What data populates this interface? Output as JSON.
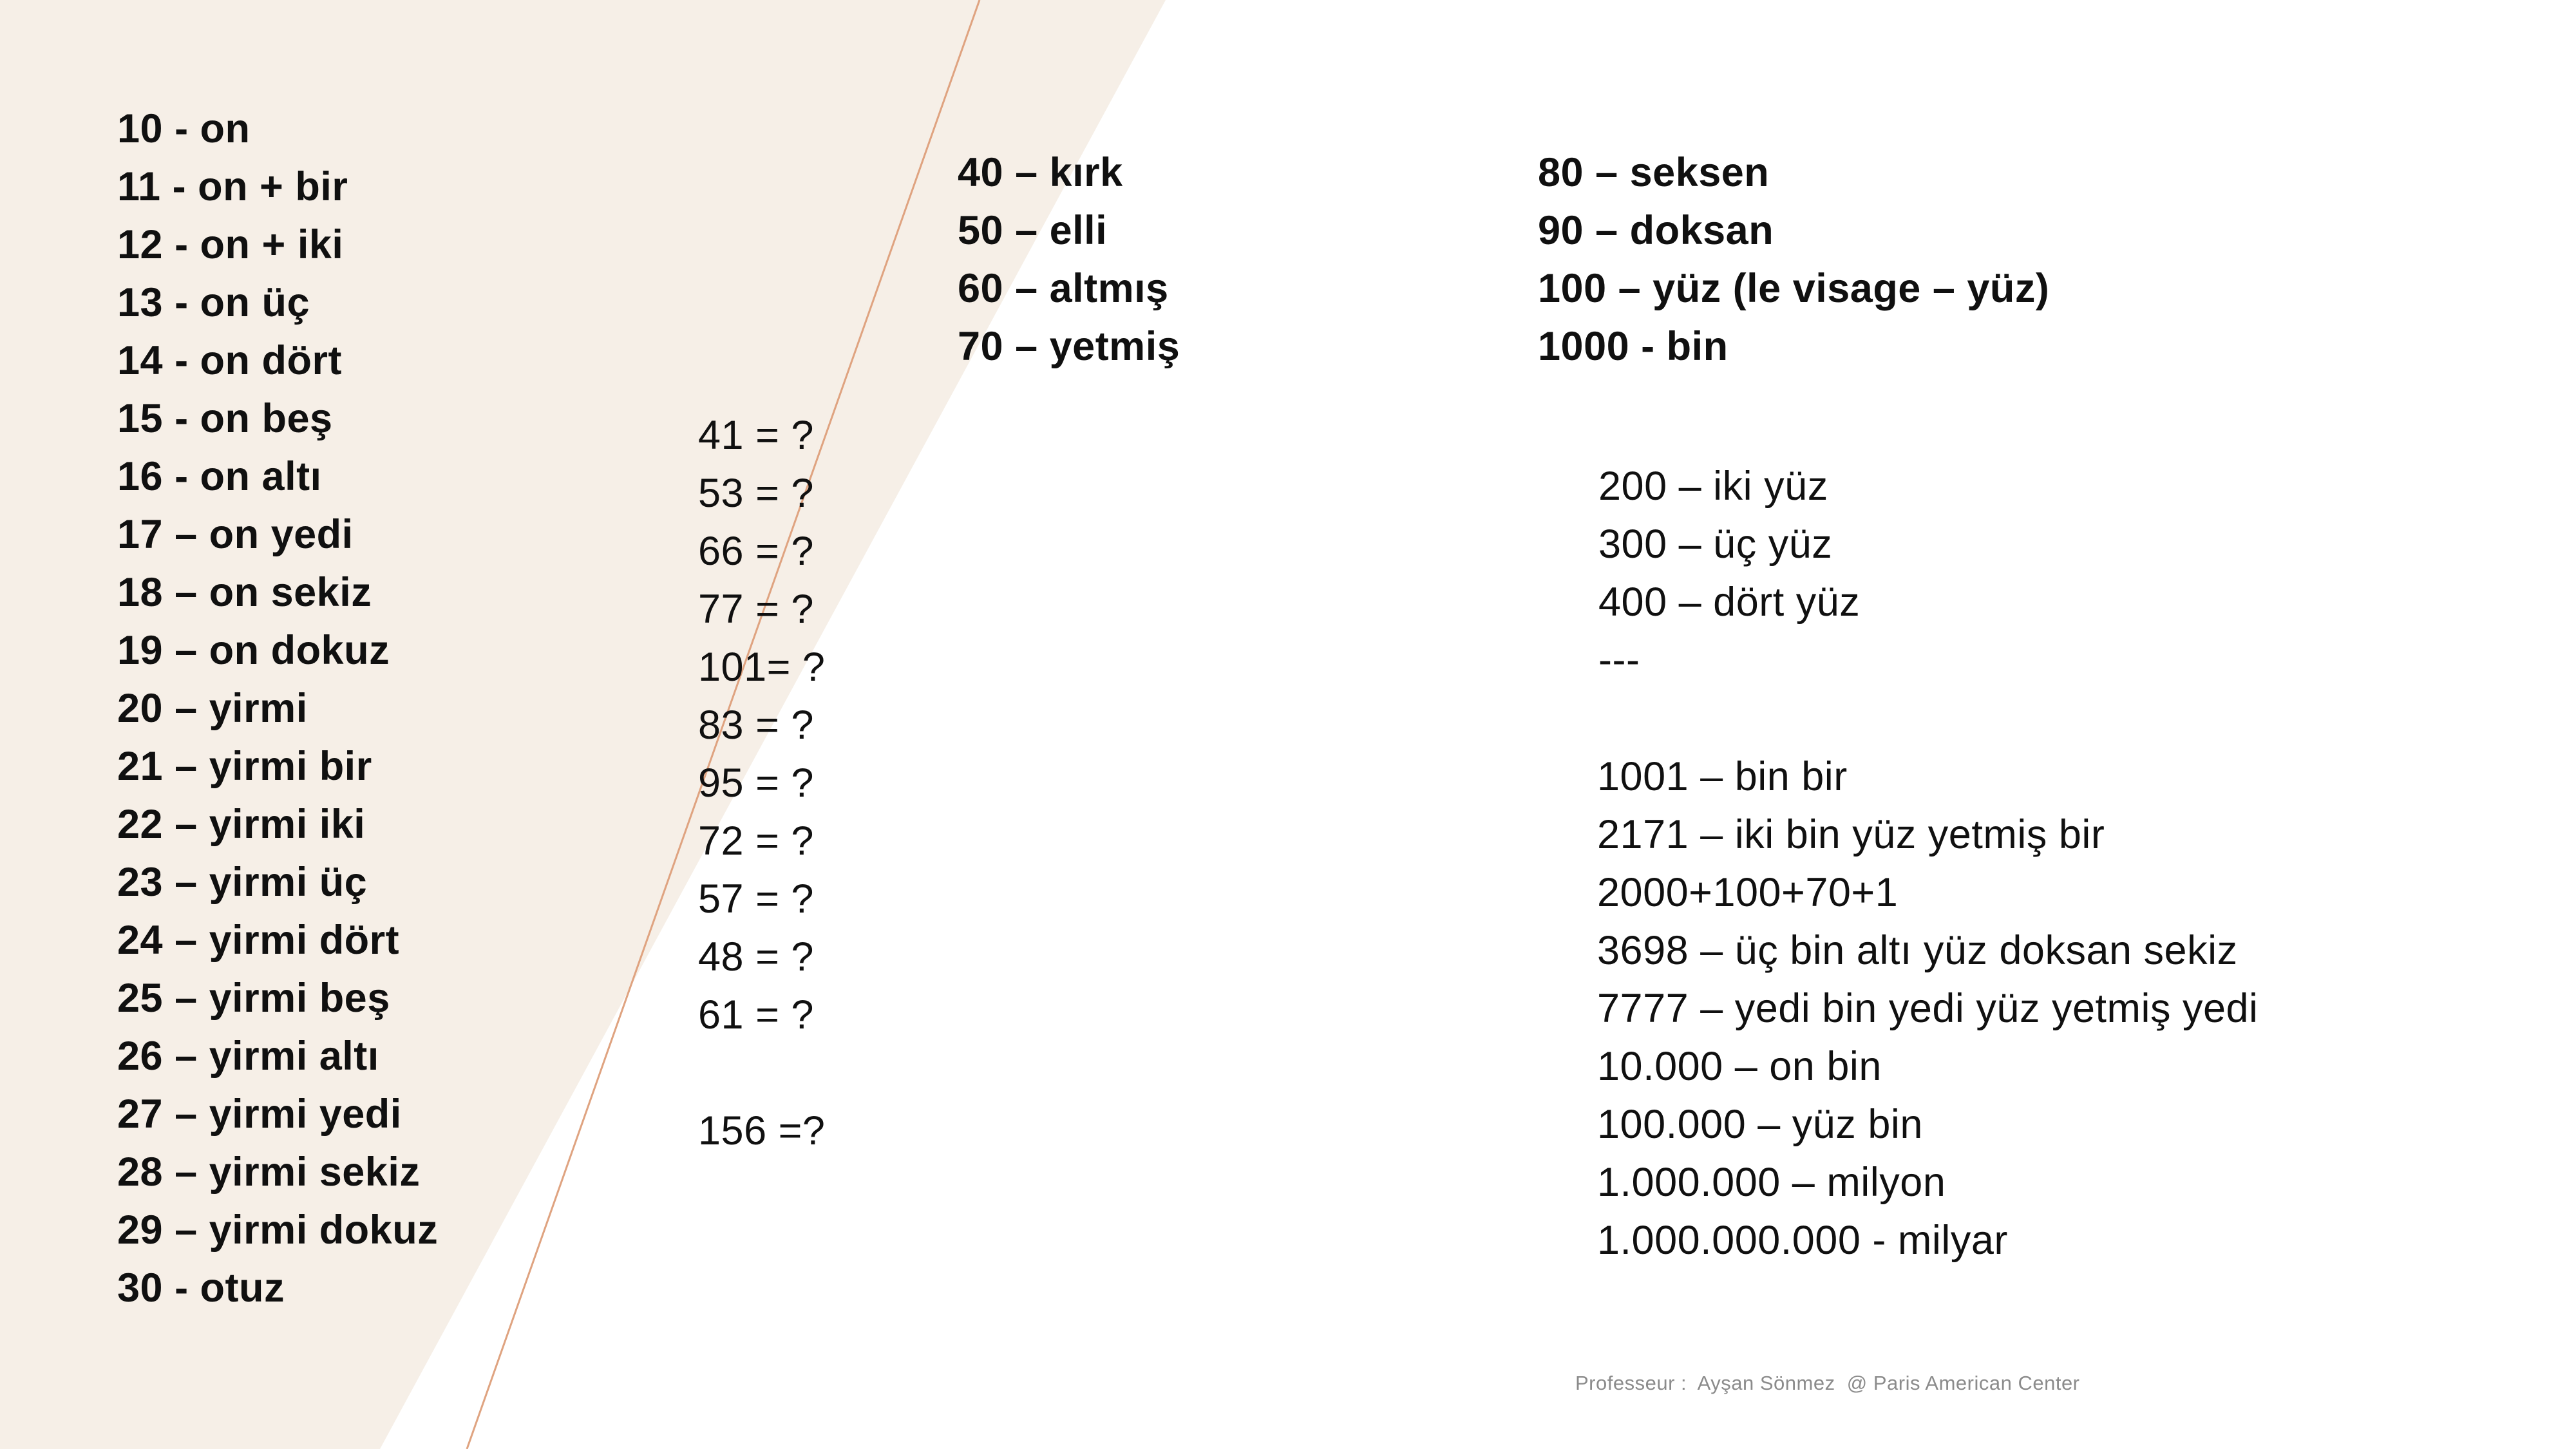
{
  "colors": {
    "background": "#ffffff",
    "wedge": "#f6efe7",
    "accent_line": "#dfa380",
    "text": "#101010",
    "footer_text": "#8b8b8b"
  },
  "lists": {
    "teens": {
      "items": [
        "10 - on",
        "11 - on + bir",
        "12 - on + iki",
        "13 - on üç",
        "14 - on dört",
        "15 - on beş",
        "16 - on altı",
        "17 – on yedi",
        "18 – on sekiz",
        "19 – on dokuz",
        "20 – yirmi",
        "21 – yirmi bir",
        "22 – yirmi iki",
        "23 – yirmi üç",
        "24 – yirmi dört",
        "25 – yirmi beş",
        "26 – yirmi altı",
        "27 – yirmi yedi",
        "28 – yirmi sekiz",
        "29 – yirmi dokuz",
        "30 - otuz"
      ]
    },
    "questions": {
      "items": [
        "41 = ?",
        "53 = ?",
        "66 = ?",
        "77 = ?",
        "101= ?",
        "83 = ?",
        "95 = ?",
        "72 = ?",
        "57 = ?",
        "48 = ?",
        "61 = ?",
        "",
        "156 =?"
      ]
    },
    "tens_left": {
      "items": [
        "40 – kırk",
        "50 – elli",
        "60 – altmış",
        "70 – yetmiş"
      ]
    },
    "tens_right": {
      "items": [
        "80 – seksen",
        "90 – doksan",
        "100 – yüz (le visage – yüz)",
        "1000 - bin"
      ]
    },
    "hundreds": {
      "items": [
        "200 – iki yüz",
        "300 – üç yüz",
        "400 – dört yüz",
        "---"
      ]
    },
    "thousands": {
      "items": [
        "1001 – bin bir",
        "2171 – iki bin yüz yetmiş bir",
        "2000+100+70+1",
        "3698 – üç bin altı yüz doksan sekiz",
        "7777 – yedi bin yedi yüz yetmiş yedi",
        "10.000 – on bin",
        "100.000 – yüz bin",
        "1.000.000 – milyon",
        "1.000.000.000 - milyar"
      ]
    }
  },
  "footer": {
    "text": "Professeur :  Ayşan Sönmez  @ Paris American Center"
  }
}
